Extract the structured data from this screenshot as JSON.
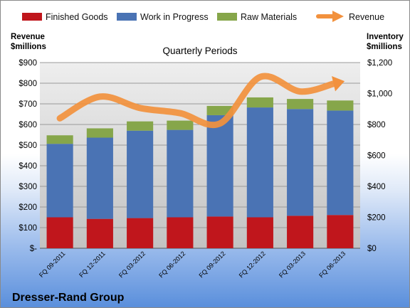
{
  "chart_data": {
    "type": "bar",
    "title": "Quarterly Periods",
    "company": "Dresser-Rand Group",
    "left_axis_label": [
      "Revenue",
      "$millions"
    ],
    "right_axis_label": [
      "Inventory",
      "$millions"
    ],
    "categories": [
      "FQ 09-2011",
      "FQ 12-2011",
      "FQ 03-2012",
      "FQ 06-2012",
      "FQ 09-2012",
      "FQ 12-2012",
      "FQ 03-2013",
      "FQ 06-2013"
    ],
    "stacked": true,
    "series": [
      {
        "name": "Finished Goods",
        "axis": "right",
        "color": "#c0161c",
        "values": [
          200,
          190,
          195,
          200,
          205,
          200,
          210,
          215
        ]
      },
      {
        "name": "Work in Progress",
        "axis": "right",
        "color": "#4a73b4",
        "values": [
          475,
          525,
          565,
          565,
          655,
          710,
          690,
          675
        ]
      },
      {
        "name": "Raw Materials",
        "axis": "right",
        "color": "#86a64a",
        "values": [
          55,
          60,
          60,
          60,
          60,
          65,
          65,
          65
        ]
      },
      {
        "name": "Revenue",
        "axis": "left",
        "type": "line",
        "color": "#f2913d",
        "values": [
          630,
          735,
          680,
          655,
          605,
          830,
          760,
          805
        ]
      }
    ],
    "left_ylim": [
      0,
      900
    ],
    "left_ticks": [
      "$-",
      "$100",
      "$200",
      "$300",
      "$400",
      "$500",
      "$600",
      "$700",
      "$800",
      "$900"
    ],
    "right_ylim": [
      0,
      1200
    ],
    "right_ticks": [
      "$0",
      "$200",
      "$400",
      "$600",
      "$800",
      "$1,000",
      "$1,200"
    ],
    "legend_position": "top",
    "grid": true
  }
}
